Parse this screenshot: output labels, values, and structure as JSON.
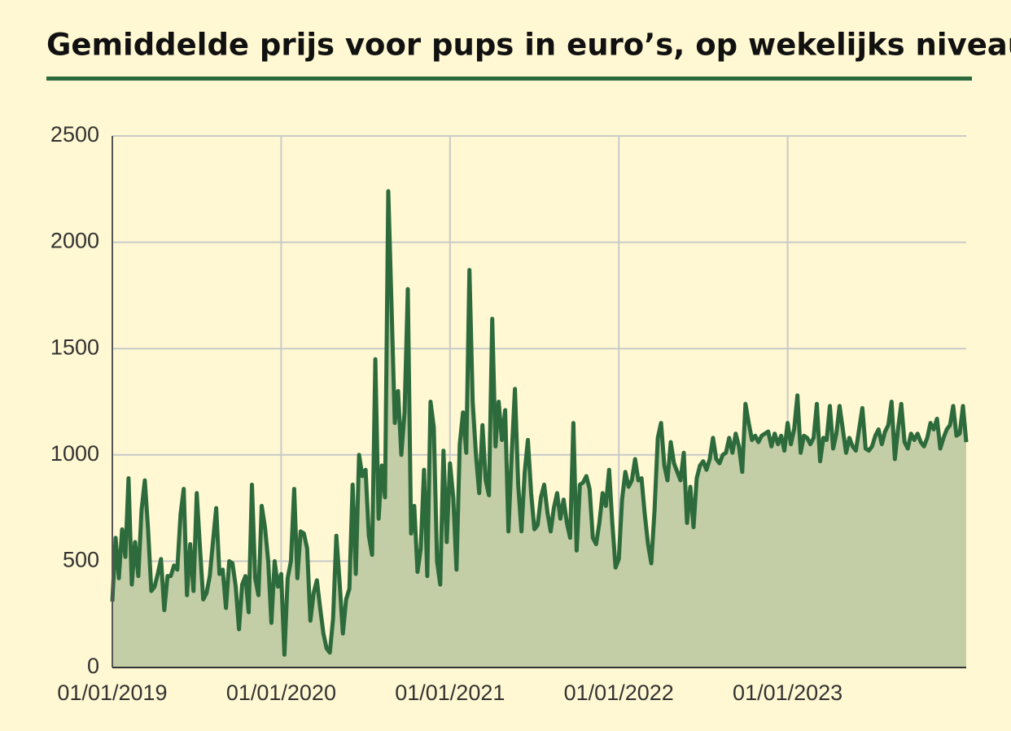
{
  "chart_data": {
    "type": "area",
    "title": "Gemiddelde prijs voor pups in euro’s, op wekelijks niveau",
    "categories": [
      "01/01/2019",
      null,
      null,
      null,
      null,
      null,
      null,
      null,
      null,
      null,
      null,
      null,
      null,
      null,
      null,
      null,
      null,
      null,
      null,
      null,
      null,
      null,
      null,
      null,
      null,
      null,
      null,
      null,
      null,
      null,
      null,
      null,
      null,
      null,
      null,
      null,
      null,
      null,
      null,
      null,
      null,
      null,
      null,
      null,
      null,
      null,
      null,
      null,
      null,
      null,
      null,
      null,
      "01/01/2020",
      null,
      null,
      null,
      null,
      null,
      null,
      null,
      null,
      null,
      null,
      null,
      null,
      null,
      null,
      null,
      null,
      null,
      null,
      null,
      null,
      null,
      null,
      null,
      null,
      null,
      null,
      null,
      null,
      null,
      null,
      null,
      null,
      null,
      null,
      null,
      null,
      null,
      null,
      null,
      null,
      null,
      null,
      null,
      null,
      null,
      null,
      null,
      null,
      null,
      null,
      null,
      "01/01/2021",
      null,
      null,
      null,
      null,
      null,
      null,
      null,
      null,
      null,
      null,
      null,
      null,
      null,
      null,
      null,
      null,
      null,
      null,
      null,
      null,
      null,
      null,
      null,
      null,
      null,
      null,
      null,
      null,
      null,
      null,
      null,
      null,
      null,
      null,
      null,
      null,
      null,
      null,
      null,
      null,
      null,
      null,
      null,
      null,
      null,
      null,
      null,
      null,
      null,
      null,
      null,
      "01/01/2022",
      null,
      null,
      null,
      null,
      null,
      null,
      null,
      null,
      null,
      null,
      null,
      null,
      null,
      null,
      null,
      null,
      null,
      null,
      null,
      null,
      null,
      null,
      null,
      null,
      null,
      null,
      null,
      null,
      null,
      null,
      null,
      null,
      null,
      null,
      null,
      null,
      null,
      null,
      null,
      null,
      null,
      null,
      null,
      null,
      null,
      null,
      null,
      null,
      null,
      null,
      null,
      "01/01/2023",
      null,
      null,
      null,
      null,
      null,
      null,
      null,
      null,
      null,
      null,
      null,
      null,
      null,
      null,
      null,
      null,
      null,
      null,
      null,
      null,
      null,
      null,
      null,
      null,
      null,
      null,
      null,
      null,
      null,
      null,
      null,
      null,
      null,
      null,
      null,
      null,
      null,
      null,
      null,
      null,
      null,
      null,
      null,
      null,
      null,
      null,
      null,
      null,
      null,
      null,
      null,
      null,
      null,
      null,
      null
    ],
    "series": [
      {
        "color": "#2e6b3c",
        "fill": "#c3cea6",
        "values": [
          310,
          610,
          420,
          650,
          520,
          890,
          390,
          590,
          430,
          740,
          880,
          650,
          360,
          380,
          440,
          510,
          270,
          430,
          430,
          480,
          460,
          720,
          840,
          340,
          580,
          360,
          820,
          560,
          320,
          350,
          430,
          590,
          750,
          440,
          460,
          280,
          500,
          490,
          380,
          180,
          390,
          430,
          260,
          860,
          420,
          340,
          760,
          660,
          500,
          210,
          500,
          380,
          440,
          60,
          420,
          500,
          840,
          420,
          640,
          630,
          560,
          220,
          350,
          410,
          280,
          160,
          90,
          70,
          230,
          620,
          400,
          160,
          320,
          370,
          860,
          440,
          1000,
          900,
          930,
          620,
          530,
          1450,
          700,
          950,
          800,
          2240,
          1700,
          1150,
          1300,
          1000,
          1200,
          1780,
          630,
          760,
          450,
          560,
          930,
          430,
          1250,
          1130,
          500,
          390,
          1020,
          590,
          960,
          800,
          460,
          1050,
          1200,
          1010,
          1870,
          1250,
          1000,
          820,
          1140,
          880,
          810,
          1640,
          1040,
          1250,
          1070,
          1210,
          640,
          1000,
          1310,
          860,
          640,
          920,
          1070,
          820,
          650,
          670,
          800,
          860,
          730,
          640,
          750,
          820,
          700,
          790,
          680,
          610,
          1150,
          550,
          860,
          870,
          900,
          840,
          610,
          580,
          680,
          820,
          760,
          930,
          680,
          470,
          510,
          790,
          920,
          850,
          880,
          980,
          880,
          890,
          720,
          580,
          490,
          740,
          1080,
          1150,
          950,
          880,
          1060,
          960,
          920,
          880,
          1010,
          680,
          850,
          660,
          890,
          950,
          970,
          930,
          980,
          1080,
          980,
          960,
          1000,
          1010,
          1080,
          1010,
          1100,
          1040,
          920,
          1240,
          1150,
          1070,
          1090,
          1060,
          1090,
          1100,
          1110,
          1040,
          1100,
          1050,
          1090,
          1020,
          1150,
          1050,
          1120,
          1280,
          1010,
          1090,
          1080,
          1050,
          1080,
          1240,
          970,
          1080,
          1070,
          1230,
          1030,
          1100,
          1230,
          1120,
          1010,
          1080,
          1040,
          1020,
          1120,
          1220,
          1030,
          1020,
          1040,
          1090,
          1120,
          1050,
          1110,
          1140,
          1250,
          980,
          1120,
          1240,
          1060,
          1030,
          1100,
          1070,
          1100,
          1060,
          1040,
          1080,
          1150,
          1120,
          1170,
          1030,
          1080,
          1120,
          1140,
          1230,
          1090,
          1100,
          1230,
          1060
        ]
      }
    ],
    "ylim": [
      0,
      2500
    ],
    "yticks": [
      0,
      500,
      1000,
      1500,
      2000,
      2500
    ],
    "grid": true
  }
}
